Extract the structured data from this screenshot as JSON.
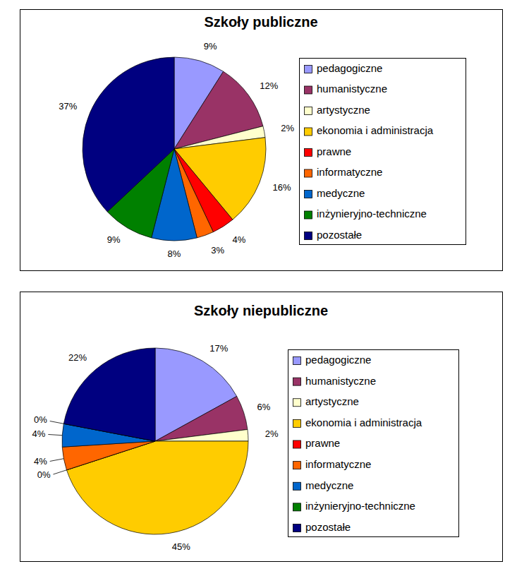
{
  "chart_data": [
    {
      "type": "pie",
      "title": "Szkoły publiczne",
      "categories": [
        "pedagogiczne",
        "humanistyczne",
        "artystyczne",
        "ekonomia i administracja",
        "prawne",
        "informatyczne",
        "medyczne",
        "inżynieryjno-techniczne",
        "pozostałe"
      ],
      "values": [
        9,
        12,
        2,
        16,
        4,
        3,
        8,
        9,
        37
      ],
      "value_labels": [
        "9%",
        "12%",
        "2%",
        "16%",
        "4%",
        "3%",
        "8%",
        "9%",
        "37%"
      ],
      "colors": [
        "#9999ff",
        "#993366",
        "#ffffcc",
        "#ffcc00",
        "#ff0000",
        "#ff6600",
        "#0066cc",
        "#008000",
        "#000080"
      ],
      "data_labels": true,
      "legend": "right"
    },
    {
      "type": "pie",
      "title": "Szkoły niepubliczne",
      "categories": [
        "pedagogiczne",
        "humanistyczne",
        "artystyczne",
        "ekonomia i administracja",
        "prawne",
        "informatyczne",
        "medyczne",
        "inżynieryjno-techniczne",
        "pozostałe"
      ],
      "values": [
        17,
        6,
        2,
        45,
        0,
        4,
        4,
        0,
        22
      ],
      "value_labels": [
        "17%",
        "6%",
        "2%",
        "45%",
        "0%",
        "4%",
        "4%",
        "0%",
        "22%"
      ],
      "colors": [
        "#9999ff",
        "#993366",
        "#ffffcc",
        "#ffcc00",
        "#ff0000",
        "#ff6600",
        "#0066cc",
        "#008000",
        "#000080"
      ],
      "data_labels": true,
      "legend": "right"
    }
  ]
}
